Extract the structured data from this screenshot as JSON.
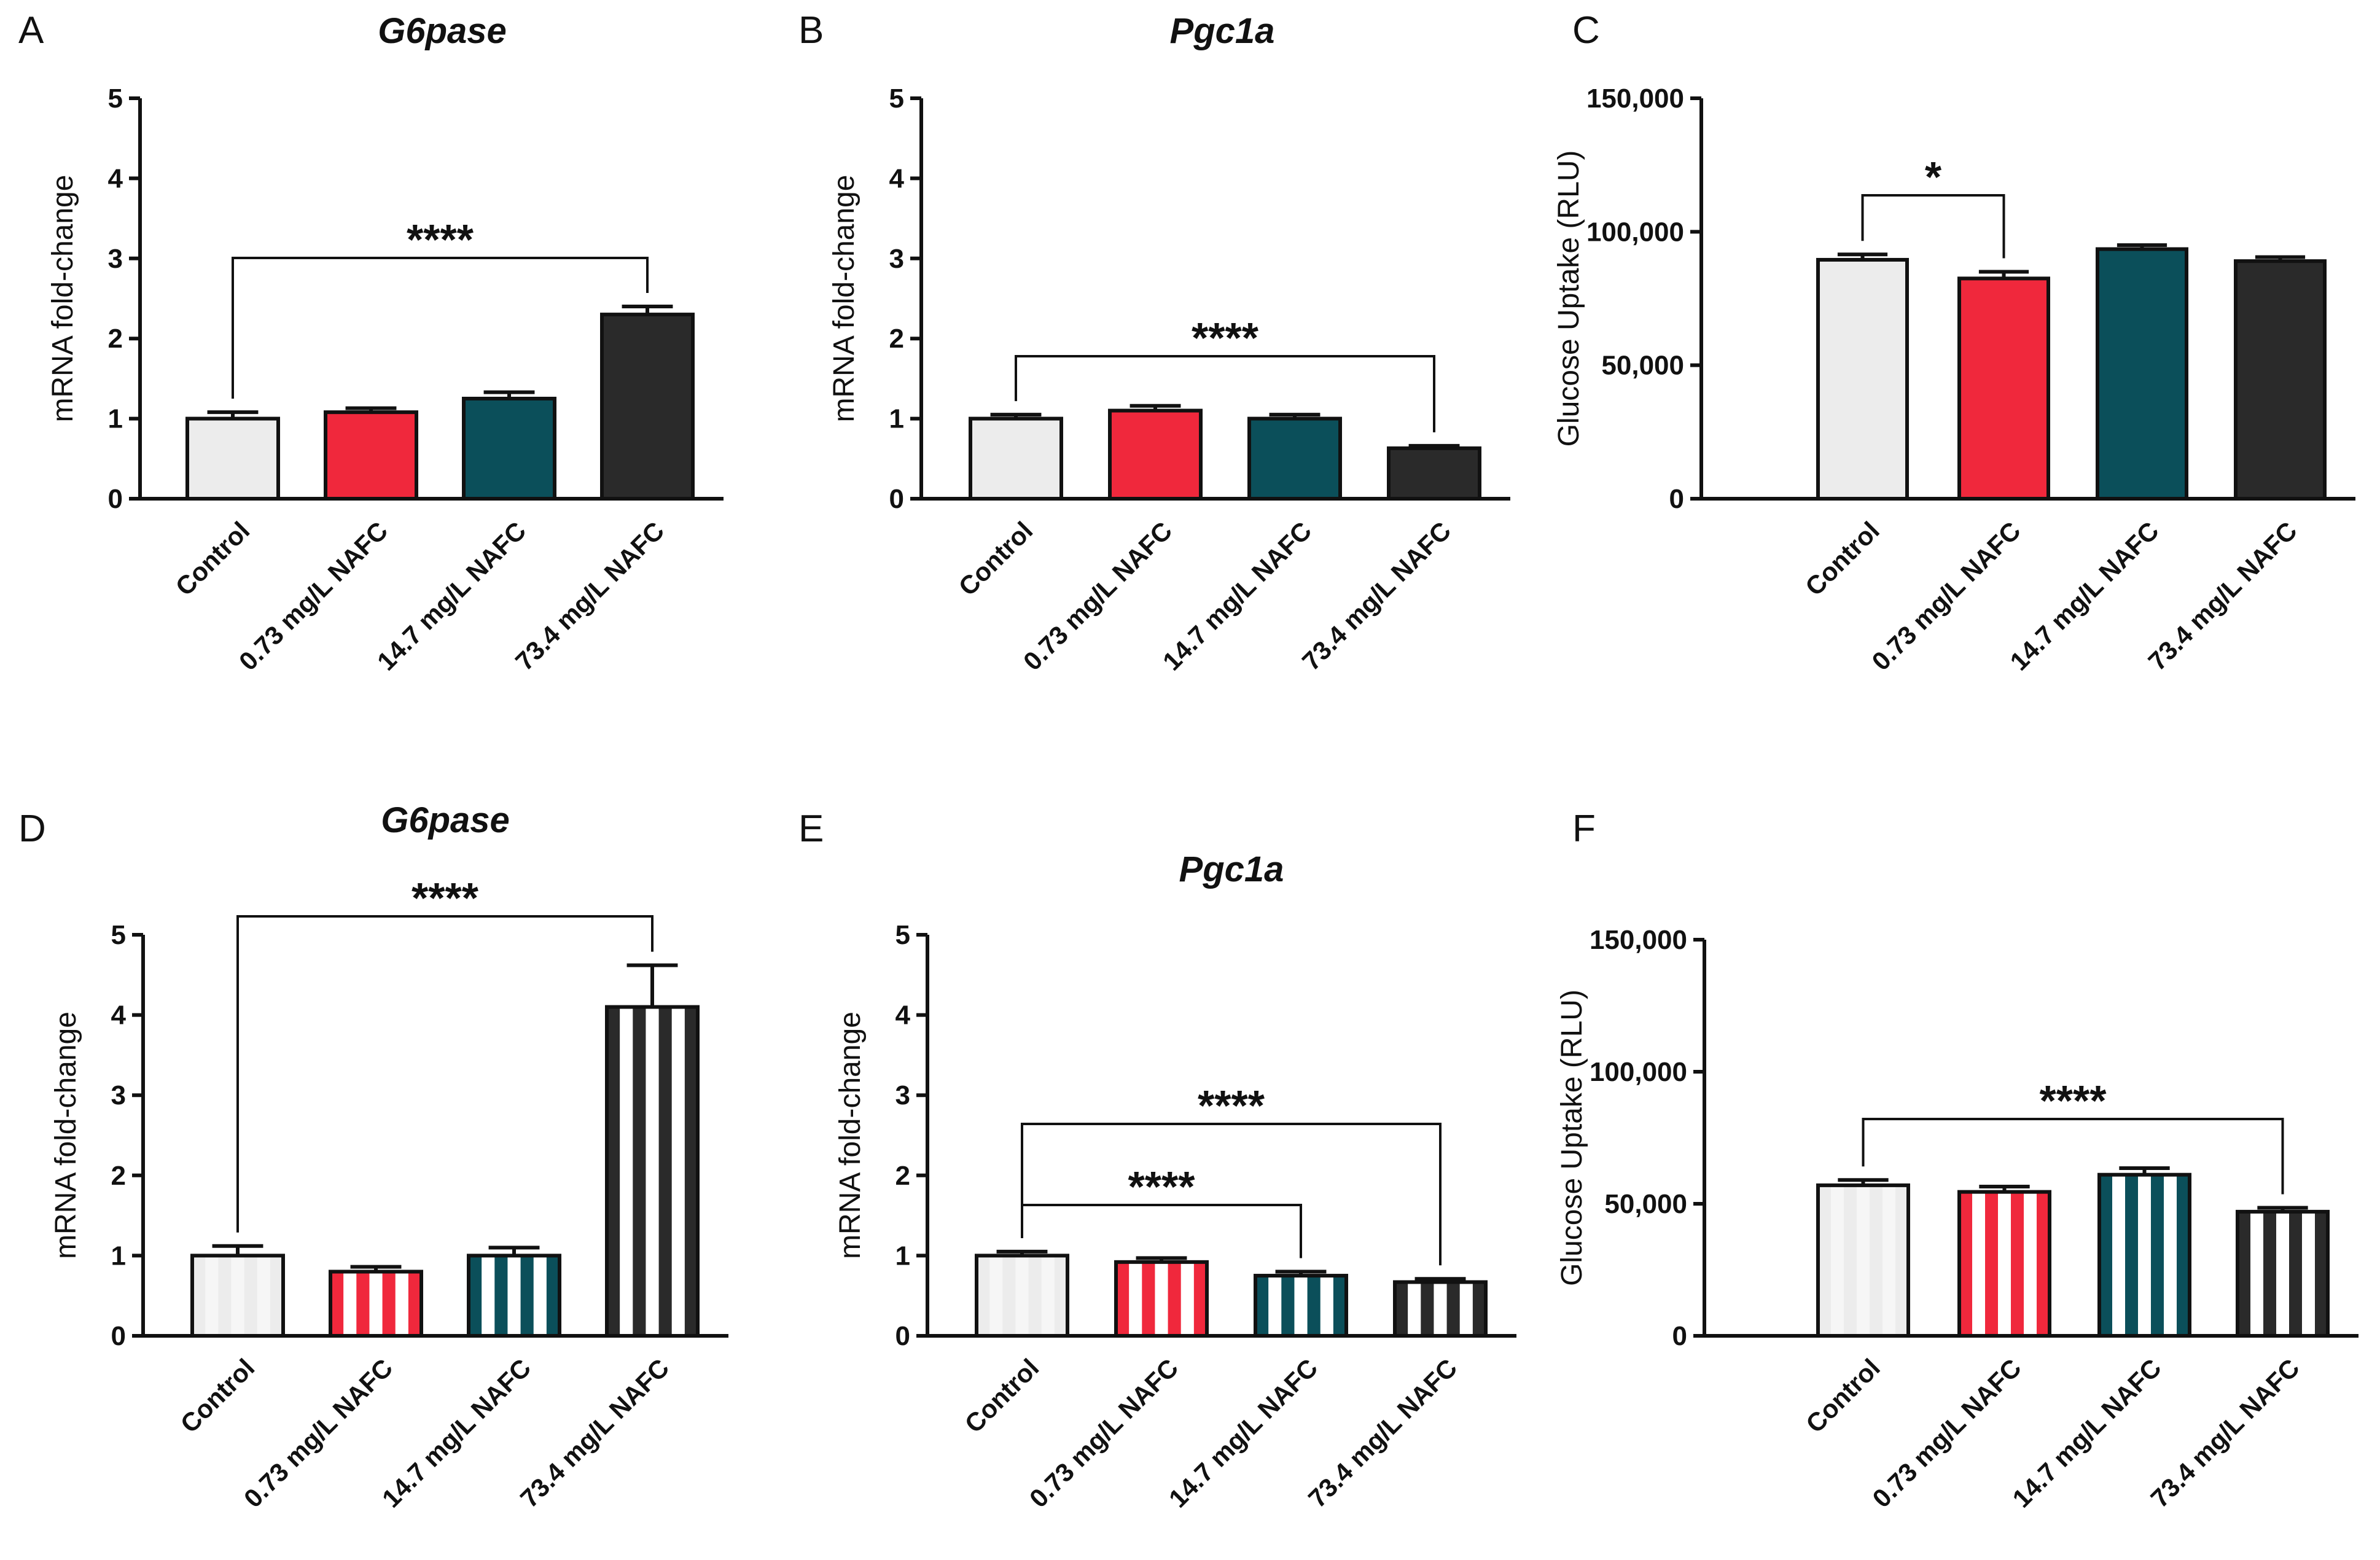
{
  "colors": {
    "control": "#ececec",
    "low": "#f0283c",
    "mid": "#0b4f5a",
    "high": "#2a2a2a",
    "stripe": "#ffffff"
  },
  "chart_data": [
    {
      "panel": "A",
      "type": "bar",
      "title": "G6pase",
      "title_italic": true,
      "ylabel": "mRNA fold-change",
      "ylim": [
        0,
        5
      ],
      "yticks": [
        "0",
        "1",
        "2",
        "3",
        "4",
        "5"
      ],
      "categories": [
        "Control",
        "0.73 mg/L NAFC",
        "14.7 mg/L NAFC",
        "73.4 mg/L NAFC"
      ],
      "values": [
        1.0,
        1.08,
        1.25,
        2.3
      ],
      "errors": [
        0.08,
        0.05,
        0.08,
        0.1
      ],
      "striped": false,
      "significance": [
        {
          "from": 0,
          "to": 3,
          "label": "****"
        }
      ]
    },
    {
      "panel": "B",
      "type": "bar",
      "title": "Pgc1a",
      "title_italic": true,
      "ylabel": "mRNA fold-change",
      "ylim": [
        0,
        5
      ],
      "yticks": [
        "0",
        "1",
        "2",
        "3",
        "4",
        "5"
      ],
      "categories": [
        "Control",
        "0.73 mg/L NAFC",
        "14.7 mg/L NAFC",
        "73.4 mg/L NAFC"
      ],
      "values": [
        1.0,
        1.1,
        1.0,
        0.63
      ],
      "errors": [
        0.05,
        0.06,
        0.05,
        0.03
      ],
      "striped": false,
      "significance": [
        {
          "from": 0,
          "to": 3,
          "label": "****"
        }
      ]
    },
    {
      "panel": "C",
      "type": "bar",
      "title": "",
      "ylabel": "Glucose Uptake (RLU)",
      "ylim": [
        0,
        150000
      ],
      "yticks": [
        "0",
        "50,000",
        "100,000",
        "150,000"
      ],
      "categories": [
        "Control",
        "0.73 mg/L NAFC",
        "14.7 mg/L NAFC",
        "73.4 mg/L NAFC"
      ],
      "values": [
        89500,
        82500,
        93500,
        89000
      ],
      "errors": [
        2000,
        2500,
        1500,
        1500
      ],
      "striped": false,
      "significance": [
        {
          "from": 0,
          "to": 1,
          "label": "*"
        }
      ]
    },
    {
      "panel": "D",
      "type": "bar",
      "title": "G6pase",
      "title_italic": true,
      "ylabel": "mRNA fold-change",
      "ylim": [
        0,
        5
      ],
      "yticks": [
        "0",
        "1",
        "2",
        "3",
        "4",
        "5"
      ],
      "categories": [
        "Control",
        "0.73 mg/L NAFC",
        "14.7 mg/L NAFC",
        "73.4 mg/L NAFC"
      ],
      "values": [
        1.0,
        0.8,
        1.0,
        4.1
      ],
      "errors": [
        0.12,
        0.06,
        0.1,
        0.52
      ],
      "striped": true,
      "significance": [
        {
          "from": 0,
          "to": 3,
          "label": "****"
        }
      ]
    },
    {
      "panel": "E",
      "type": "bar",
      "title": "Pgc1a",
      "title_italic": true,
      "ylabel": "mRNA fold-change",
      "ylim": [
        0,
        5
      ],
      "yticks": [
        "0",
        "1",
        "2",
        "3",
        "4",
        "5"
      ],
      "categories": [
        "Control",
        "0.73 mg/L NAFC",
        "14.7 mg/L NAFC",
        "73.4 mg/L NAFC"
      ],
      "values": [
        1.0,
        0.92,
        0.75,
        0.67
      ],
      "errors": [
        0.05,
        0.05,
        0.05,
        0.04
      ],
      "striped": true,
      "significance": [
        {
          "from": 0,
          "to": 3,
          "label": "****"
        },
        {
          "from": 0,
          "to": 2,
          "label": "****"
        }
      ]
    },
    {
      "panel": "F",
      "type": "bar",
      "title": "",
      "ylabel": "Glucose Uptake (RLU)",
      "ylim": [
        0,
        150000
      ],
      "yticks": [
        "0",
        "50,000",
        "100,000",
        "150,000"
      ],
      "categories": [
        "Control",
        "0.73 mg/L NAFC",
        "14.7 mg/L NAFC",
        "73.4 mg/L NAFC"
      ],
      "values": [
        57000,
        54500,
        61000,
        47000
      ],
      "errors": [
        2000,
        2000,
        2500,
        1500
      ],
      "striped": true,
      "significance": [
        {
          "from": 0,
          "to": 3,
          "label": "****"
        }
      ]
    }
  ]
}
